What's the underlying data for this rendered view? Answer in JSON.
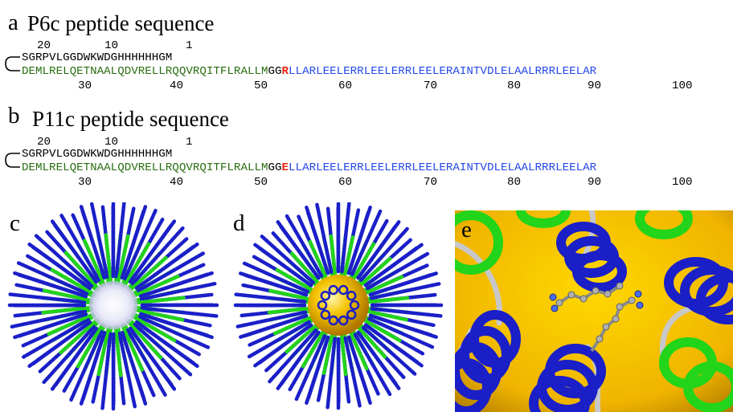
{
  "panel_a": {
    "label": "a",
    "title": "P6c peptide sequence",
    "top_numbers": [
      "20",
      "10",
      "1"
    ],
    "upper_seq": "SGRPVLGGDWKWDGHHHHHHGM",
    "green_seq": "DEMLRELQETNAALQDVRELLRQQVRQITFLRALLM",
    "gg": "GG",
    "mutation": "R",
    "blue_seq": "LLARLEELERRLEELERRLEELERAINTVDLELAALRRRLEELAR",
    "bottom_numbers": [
      "30",
      "40",
      "50",
      "60",
      "70",
      "80",
      "90",
      "100"
    ]
  },
  "panel_b": {
    "label": "b",
    "title": "P11c peptide sequence",
    "top_numbers": [
      "20",
      "10",
      "1"
    ],
    "upper_seq": "SGRPVLGGDWKWDGHHHHHHGM",
    "green_seq": "DEMLRELQETNAALQDVRELLRQQVRQITFLRALLM",
    "gg": "GG",
    "mutation": "E",
    "blue_seq": "LLARLEELERRLEELERRLEELERAINTVDLELAALRRRLEELAR",
    "bottom_numbers": [
      "30",
      "40",
      "50",
      "60",
      "70",
      "80",
      "90",
      "100"
    ]
  },
  "panel_c": {
    "label": "c"
  },
  "panel_d": {
    "label": "d"
  },
  "panel_e": {
    "label": "e"
  },
  "colors": {
    "green_text": "#2a6e12",
    "blue_text": "#2448e8",
    "mutation_red": "#e8240e",
    "helix_blue": "#1a1fc8",
    "helix_green": "#22d41a",
    "core_gold": "#f0b400",
    "loop_grey": "#c8c8c8"
  }
}
